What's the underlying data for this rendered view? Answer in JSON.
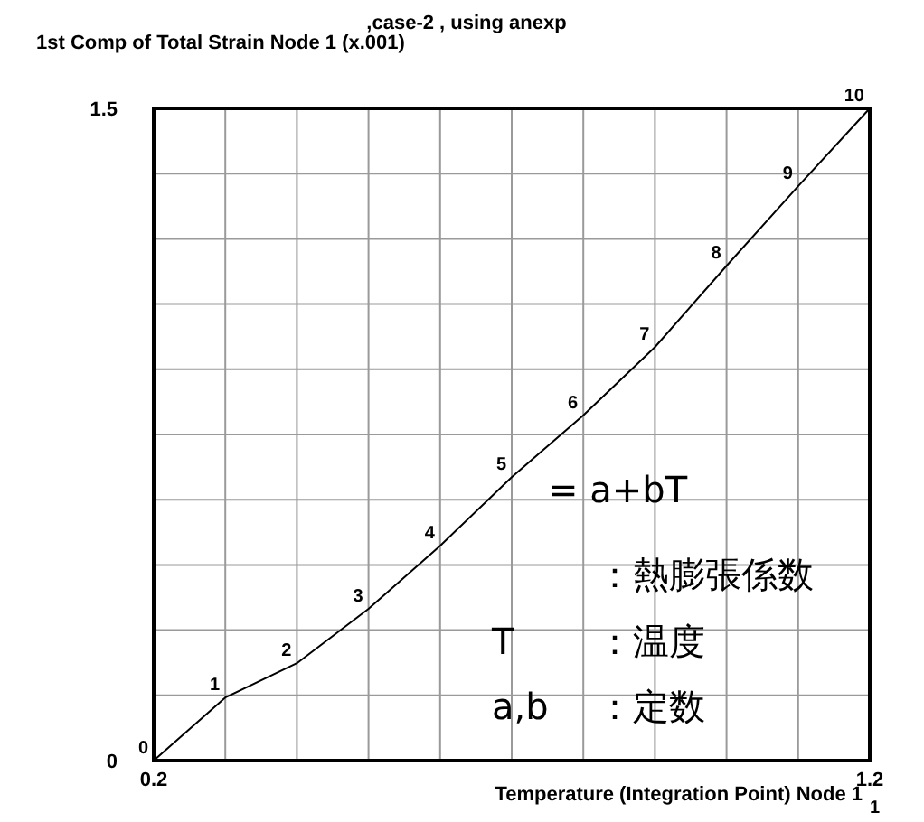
{
  "chart_data": {
    "type": "line",
    "title": ",case-2 , using anexp",
    "ylabel": "1st Comp of Total Strain Node 1 (x.001)",
    "xlabel": "Temperature (Integration Point) Node 1",
    "series": [
      {
        "color": "#000000",
        "x": [
          0.2,
          0.3,
          0.4,
          0.5,
          0.6,
          0.7,
          0.8,
          0.9,
          1.0,
          1.1,
          1.2
        ],
        "values": [
          0,
          0.145,
          0.224,
          0.349,
          0.494,
          0.652,
          0.794,
          0.951,
          1.138,
          1.321,
          1.5
        ]
      }
    ],
    "xlim": [
      0.2,
      1.2
    ],
    "ylim": [
      0,
      1.5
    ],
    "xticks": [
      0.2,
      {
        "value": 0.3,
        "label": null
      },
      {
        "value": 0.4,
        "label": null
      },
      {
        "value": 0.5,
        "label": null
      },
      {
        "value": 0.6,
        "label": null
      },
      {
        "value": 0.7,
        "label": null
      },
      {
        "value": 0.8,
        "label": null
      },
      {
        "value": 0.9,
        "label": null
      },
      {
        "value": 1.0,
        "label": null
      },
      {
        "value": 1.1,
        "label": null
      },
      1.2
    ],
    "yticks": [
      0,
      {
        "value": 0.15,
        "label": null
      },
      {
        "value": 0.3,
        "label": null
      },
      {
        "value": 0.45,
        "label": null
      },
      {
        "value": 0.6,
        "label": null
      },
      {
        "value": 0.75,
        "label": null
      },
      {
        "value": 0.9,
        "label": null
      },
      {
        "value": 1.05,
        "label": null
      },
      {
        "value": 1.2,
        "label": null
      },
      {
        "value": 1.35,
        "label": null
      },
      1.5
    ],
    "grid": true,
    "annotations": [
      {
        "text": "0",
        "x": 0.2,
        "y": 0
      },
      {
        "text": "1",
        "x": 0.3,
        "y": 0.145
      },
      {
        "text": "2",
        "x": 0.4,
        "y": 0.224
      },
      {
        "text": "3",
        "x": 0.5,
        "y": 0.349
      },
      {
        "text": "4",
        "x": 0.6,
        "y": 0.494
      },
      {
        "text": "5",
        "x": 0.7,
        "y": 0.652
      },
      {
        "text": "6",
        "x": 0.8,
        "y": 0.794
      },
      {
        "text": "7",
        "x": 0.9,
        "y": 0.951
      },
      {
        "text": "8",
        "x": 1.0,
        "y": 1.138
      },
      {
        "text": "9",
        "x": 1.1,
        "y": 1.321
      },
      {
        "text": "10",
        "x": 1.2,
        "y": 1.5
      },
      "= a+bT",
      "：熱膨張係数",
      "T",
      "：温度",
      "a,b",
      "：定数",
      "1"
    ]
  }
}
